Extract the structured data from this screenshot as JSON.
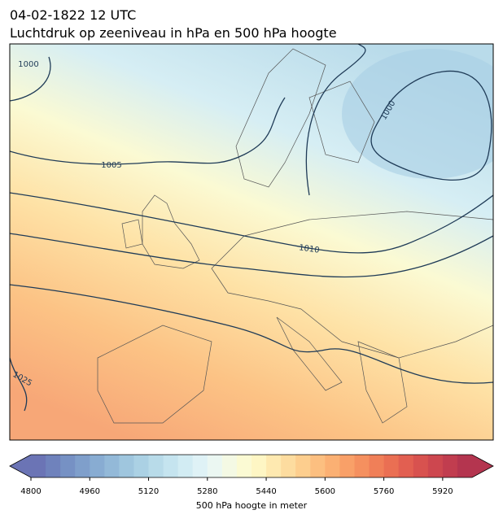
{
  "header": {
    "date": "04-02-1822 12 UTC",
    "title": "Luchtdruk op zeeniveau in hPa en 500 hPa hoogte"
  },
  "isobars": [
    {
      "label": 1000
    },
    {
      "label": 1005
    },
    {
      "label": 1010
    },
    {
      "label": 1025
    },
    {
      "label": 1000
    }
  ],
  "colorbar": {
    "label": "500 hPa hoogte in meter",
    "lim": [
      4800,
      6000
    ],
    "ticks": [
      4800,
      4960,
      5120,
      5280,
      5440,
      5600,
      5760,
      5920
    ],
    "colors": [
      "#6b74b5",
      "#6f82bc",
      "#7691c4",
      "#7f9fcb",
      "#88acd2",
      "#93b9d8",
      "#9fc6de",
      "#abd1e4",
      "#b8dbe9",
      "#c5e4ef",
      "#d2ecf3",
      "#dff2f6",
      "#ebf7f2",
      "#f4f9e4",
      "#fbfad3",
      "#fef6c4",
      "#fee9b0",
      "#fddc9f",
      "#fdce8e",
      "#fcbf80",
      "#fbb073",
      "#f9a068",
      "#f5905f",
      "#f07f58",
      "#ea6f53",
      "#e25f51",
      "#d8524f",
      "#cd474f",
      "#c13d4f",
      "#b4354f"
    ]
  }
}
